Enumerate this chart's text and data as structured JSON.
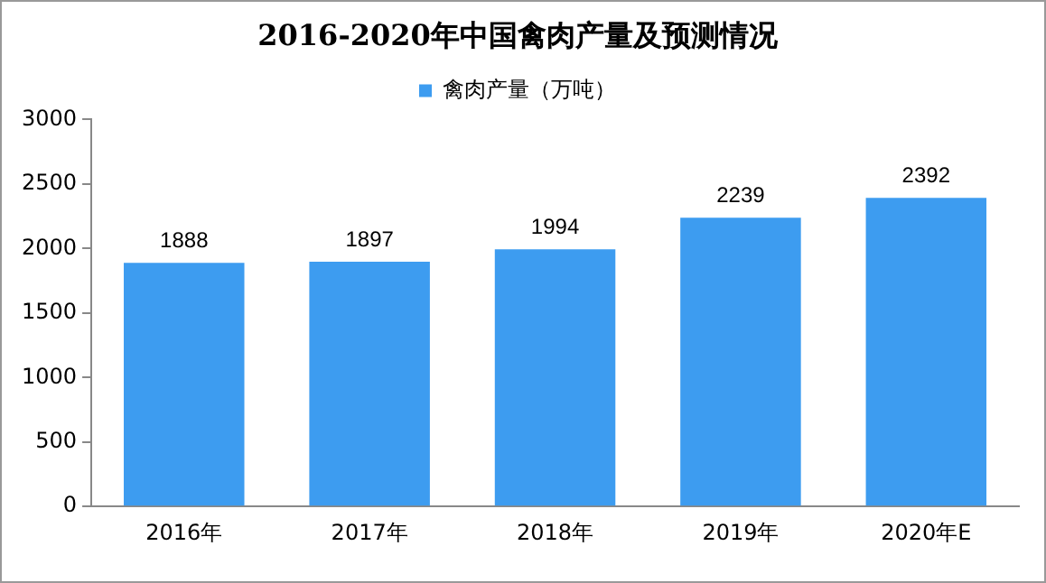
{
  "chart_data": {
    "type": "bar",
    "title": "2016-2020年中国禽肉产量及预测情况",
    "categories": [
      "2016年",
      "2017年",
      "2018年",
      "2019年",
      "2020年E"
    ],
    "series": [
      {
        "name": "禽肉产量（万吨）",
        "color": "#3d9cf0",
        "values": [
          1888,
          1897,
          1994,
          2239,
          2392
        ]
      }
    ],
    "ylim": [
      0,
      3000
    ],
    "yticks": [
      0,
      500,
      1000,
      1500,
      2000,
      2500,
      3000
    ],
    "grid": false,
    "legend": "top",
    "data_labels": true
  }
}
